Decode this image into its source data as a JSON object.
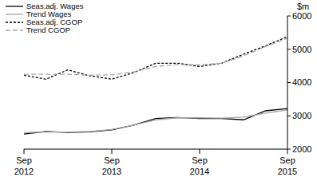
{
  "chart_data": {
    "type": "line",
    "ylabel": "$m",
    "categories": [
      "Sep 2012",
      null,
      null,
      null,
      "Sep 2013",
      null,
      null,
      null,
      "Sep 2014",
      null,
      null,
      null,
      "Sep 2015"
    ],
    "ylim": [
      2000,
      6000
    ],
    "yticks": [
      2000,
      3000,
      4000,
      5000,
      6000
    ],
    "grid": false,
    "legend": "upper left",
    "series": [
      {
        "name": "Seas.adj. Wages",
        "color": "#000000",
        "line_style": "solid",
        "values": [
          2450,
          2530,
          2500,
          2520,
          2580,
          2720,
          2920,
          2950,
          2920,
          2920,
          2880,
          3150,
          3220
        ]
      },
      {
        "name": "Trend Wages",
        "color": "#a6a6a6",
        "line_style": "solid",
        "values": [
          2500,
          2510,
          2510,
          2530,
          2590,
          2720,
          2880,
          2940,
          2940,
          2930,
          2960,
          3080,
          3180
        ]
      },
      {
        "name": "Seas.adj. CGOP",
        "color": "#000000",
        "line_style": "dashed",
        "values": [
          4220,
          4100,
          4380,
          4200,
          4100,
          4300,
          4580,
          4580,
          4480,
          4580,
          4850,
          5100,
          5380
        ]
      },
      {
        "name": "Trend CGOP",
        "color": "#a6a6a6",
        "line_style": "longdash",
        "values": [
          4250,
          4250,
          4250,
          4220,
          4230,
          4320,
          4480,
          4540,
          4530,
          4580,
          4800,
          5080,
          5330
        ]
      }
    ]
  }
}
